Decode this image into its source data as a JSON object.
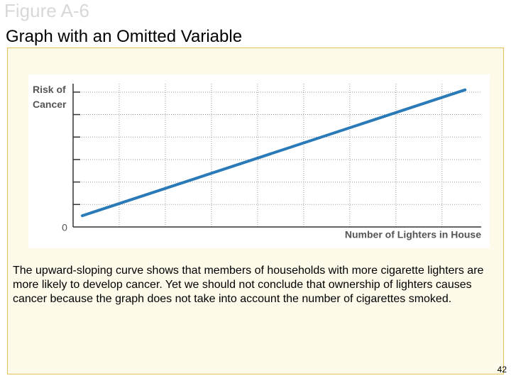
{
  "header": {
    "figure": "Figure A-6",
    "title": "Graph with an Omitted Variable"
  },
  "chart_data": {
    "type": "line",
    "y_label": "Risk of Cancer",
    "x_label": "Number of Lighters in House",
    "x": [
      0.2,
      8.5
    ],
    "series": [
      {
        "name": "Risk of cancer",
        "color": "#2a7ab8",
        "values": [
          0.5,
          6.1
        ]
      }
    ],
    "xlim": [
      0,
      8.85
    ],
    "xticks": [
      1,
      2,
      3,
      4,
      5,
      6,
      7,
      8
    ],
    "ylim": [
      0,
      6.2
    ],
    "yticks": [
      0,
      1,
      2,
      3,
      4,
      5,
      6
    ],
    "grid": true
  },
  "caption": "The upward-sloping curve shows that members of households with more cigarette lighters are more likely to develop cancer. Yet we should not conclude that ownership of lighters causes cancer because the graph does not take into account the number of cigarettes smoked.",
  "page_number": "42"
}
